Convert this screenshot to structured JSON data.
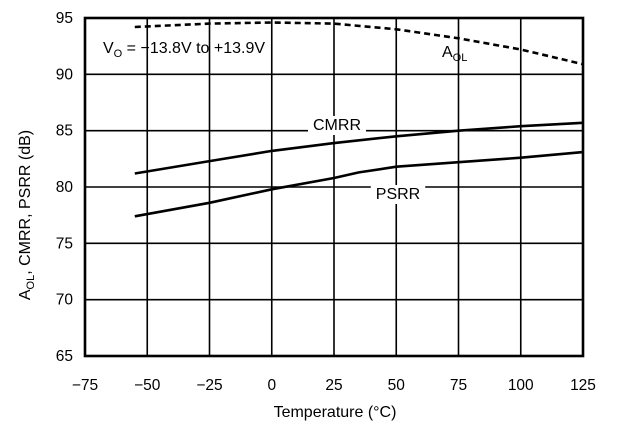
{
  "chart_data": {
    "type": "line",
    "title": "",
    "xlabel": "Temperature (°C)",
    "ylabel": "A_OL, CMRR, PSRR (dB)",
    "ylabel_parts": {
      "a": "A",
      "sub": "OL",
      "rest": ", CMRR, PSRR (dB)"
    },
    "xlim": [
      -75,
      125
    ],
    "ylim": [
      65,
      95
    ],
    "x_ticks": [
      -75,
      -50,
      -25,
      0,
      25,
      50,
      75,
      100,
      125
    ],
    "x_tick_labels": [
      "−75",
      "−50",
      "−25",
      "0",
      "25",
      "50",
      "75",
      "100",
      "125"
    ],
    "y_ticks": [
      65,
      70,
      75,
      80,
      85,
      90,
      95
    ],
    "grid": true,
    "annotation": {
      "prefix": "V",
      "sub": "O",
      "text": " = −13.8V to +13.9V"
    },
    "series": [
      {
        "name": "A_OL",
        "label": {
          "main": "A",
          "sub": "OL"
        },
        "style": "dashed",
        "x": [
          -55,
          -25,
          0,
          25,
          50,
          75,
          100,
          125
        ],
        "y": [
          94.2,
          94.5,
          94.6,
          94.5,
          94.0,
          93.2,
          92.2,
          90.9
        ]
      },
      {
        "name": "CMRR",
        "label": {
          "main": "CMRR",
          "sub": ""
        },
        "style": "solid",
        "x": [
          -55,
          -25,
          0,
          25,
          50,
          75,
          100,
          125
        ],
        "y": [
          81.2,
          82.3,
          83.2,
          83.9,
          84.5,
          85.0,
          85.4,
          85.7
        ]
      },
      {
        "name": "PSRR",
        "label": {
          "main": "PSRR",
          "sub": ""
        },
        "style": "solid",
        "x": [
          -55,
          -25,
          0,
          25,
          35,
          50,
          75,
          100,
          125
        ],
        "y": [
          77.4,
          78.6,
          79.8,
          80.8,
          81.3,
          81.8,
          82.2,
          82.6,
          83.1
        ]
      }
    ]
  }
}
